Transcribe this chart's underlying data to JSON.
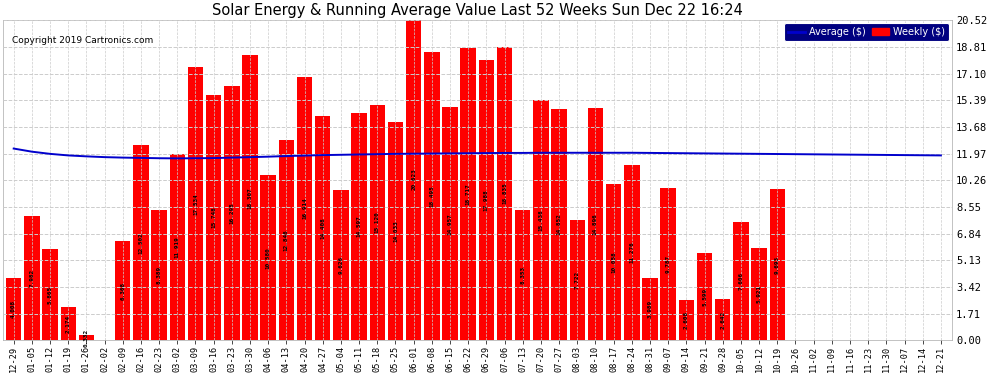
{
  "title": "Solar Energy & Running Average Value Last 52 Weeks Sun Dec 22 16:24",
  "copyright": "Copyright 2019 Cartronics.com",
  "bar_color": "#ff0000",
  "avg_line_color": "#0000cc",
  "background_color": "#ffffff",
  "plot_bg_color": "#ffffff",
  "ylim": [
    0,
    20.52
  ],
  "yticks": [
    0.0,
    1.71,
    3.42,
    5.13,
    6.84,
    8.55,
    10.26,
    11.97,
    13.68,
    15.39,
    17.1,
    18.81,
    20.52
  ],
  "labels": [
    "12-29",
    "01-05",
    "01-12",
    "01-19",
    "01-26",
    "02-02",
    "02-09",
    "02-16",
    "02-23",
    "03-02",
    "03-09",
    "03-16",
    "03-23",
    "03-30",
    "04-06",
    "04-13",
    "04-20",
    "04-27",
    "05-04",
    "05-11",
    "05-18",
    "05-25",
    "06-01",
    "06-08",
    "06-15",
    "06-22",
    "06-29",
    "07-06",
    "07-13",
    "07-20",
    "07-27",
    "08-03",
    "08-10",
    "08-17",
    "08-24",
    "08-31",
    "09-07",
    "09-14",
    "09-21",
    "09-28",
    "10-05",
    "10-12",
    "10-19",
    "10-26",
    "11-02",
    "11-09",
    "11-16",
    "11-23",
    "11-30",
    "12-07",
    "12-14",
    "12-21"
  ],
  "bar_values": [
    4.008,
    7.982,
    5.865,
    2.174,
    0.332,
    0.005,
    6.368,
    12.502,
    8.389,
    11.919,
    17.534,
    15.748,
    16.295,
    18.307,
    10.58,
    12.846,
    16.914,
    14.408,
    9.626,
    14.597,
    15.12,
    14.033,
    20.623,
    18.495,
    14.957,
    18.717,
    17.988,
    18.835,
    8.353,
    15.438,
    14.852,
    7.722,
    14.896,
    10.058,
    11.276,
    3.989,
    9.787,
    2.608,
    5.599,
    2.642,
    7.606,
    5.921,
    9.693,
    0.0,
    0.0,
    0.0,
    0.0,
    0.0,
    0.0,
    0.0,
    0.0,
    0.0
  ],
  "avg_values": [
    12.3,
    12.1,
    11.96,
    11.86,
    11.8,
    11.75,
    11.72,
    11.7,
    11.68,
    11.67,
    11.68,
    11.69,
    11.72,
    11.75,
    11.78,
    11.82,
    11.85,
    11.88,
    11.9,
    11.92,
    11.94,
    11.96,
    11.97,
    11.98,
    11.99,
    12.0,
    12.01,
    12.02,
    12.02,
    12.03,
    12.03,
    12.03,
    12.03,
    12.03,
    12.03,
    12.02,
    12.01,
    12.0,
    11.99,
    11.98,
    11.97,
    11.96,
    11.95,
    11.94,
    11.93,
    11.92,
    11.91,
    11.9,
    11.89,
    11.88,
    11.87,
    11.86
  ]
}
